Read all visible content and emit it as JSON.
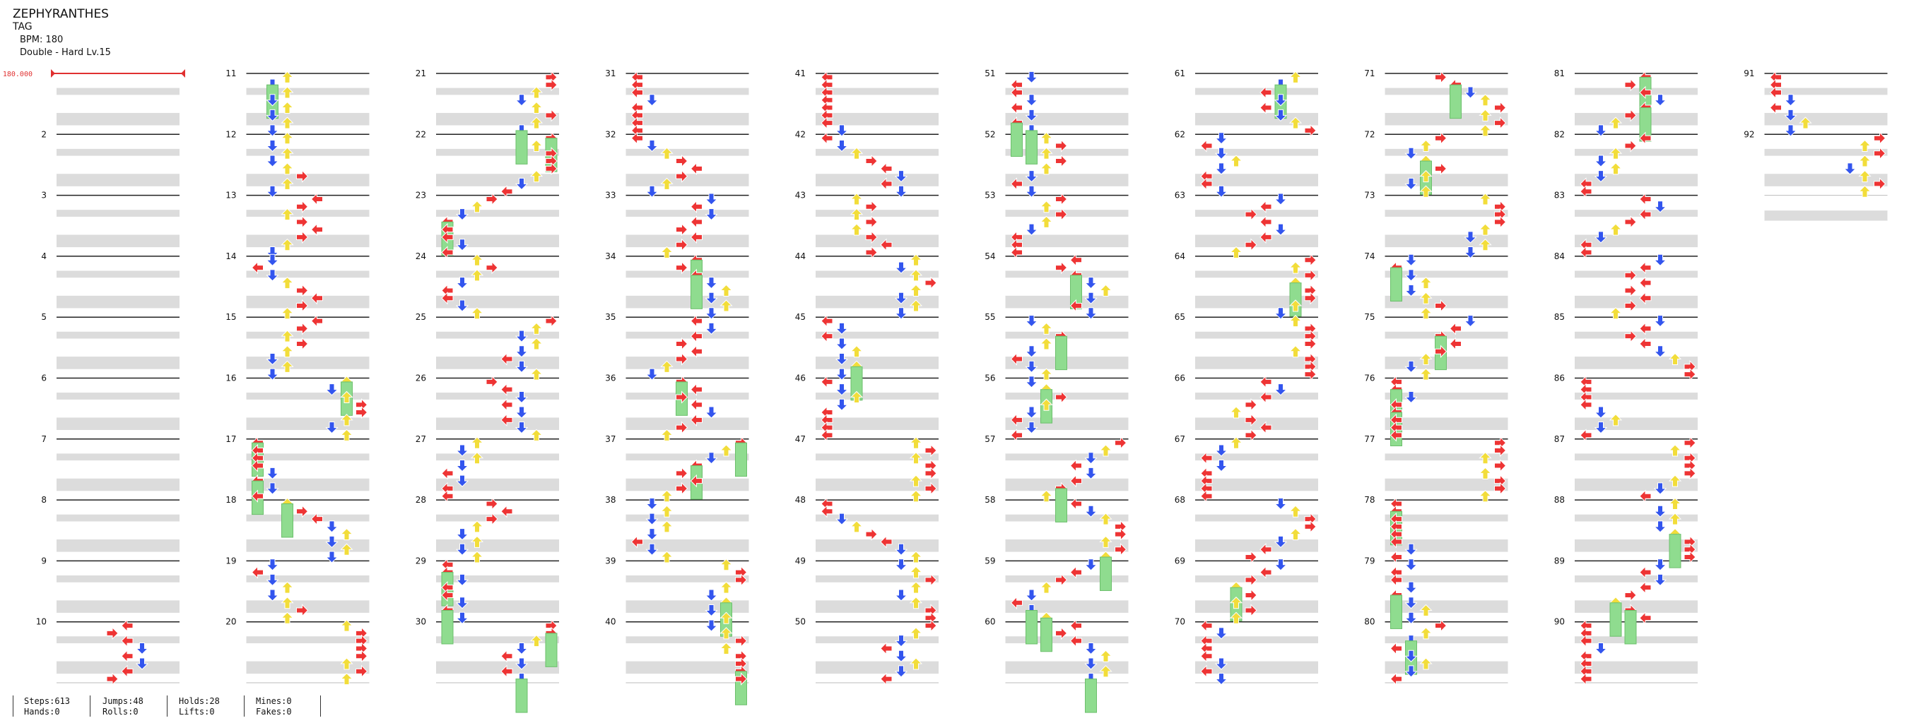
{
  "song": {
    "title": "ZEPHYRANTHES",
    "artist": "TAG",
    "bpm_label": "BPM: 180",
    "difficulty_label": "Double - Hard Lv.15"
  },
  "bpm_marker": "180.000",
  "colors": {
    "left": "#ee3434",
    "down": "#3355ee",
    "up": "#f2dd3a",
    "right": "#ee3434",
    "hold": "#8fdc8f",
    "lane_shade": "#dcdcdc",
    "bpm_marker": "#e03030"
  },
  "chart": {
    "measure_count": 92,
    "columns": 10,
    "measures_per_column": 10,
    "panels": 8
  },
  "stats": [
    [
      "Steps:613",
      "Hands:0"
    ],
    [
      "Jumps:48",
      "Rolls:0"
    ],
    [
      "Holds:28",
      "Lifts:0"
    ],
    [
      "Mines:0",
      "Fakes:0"
    ]
  ]
}
